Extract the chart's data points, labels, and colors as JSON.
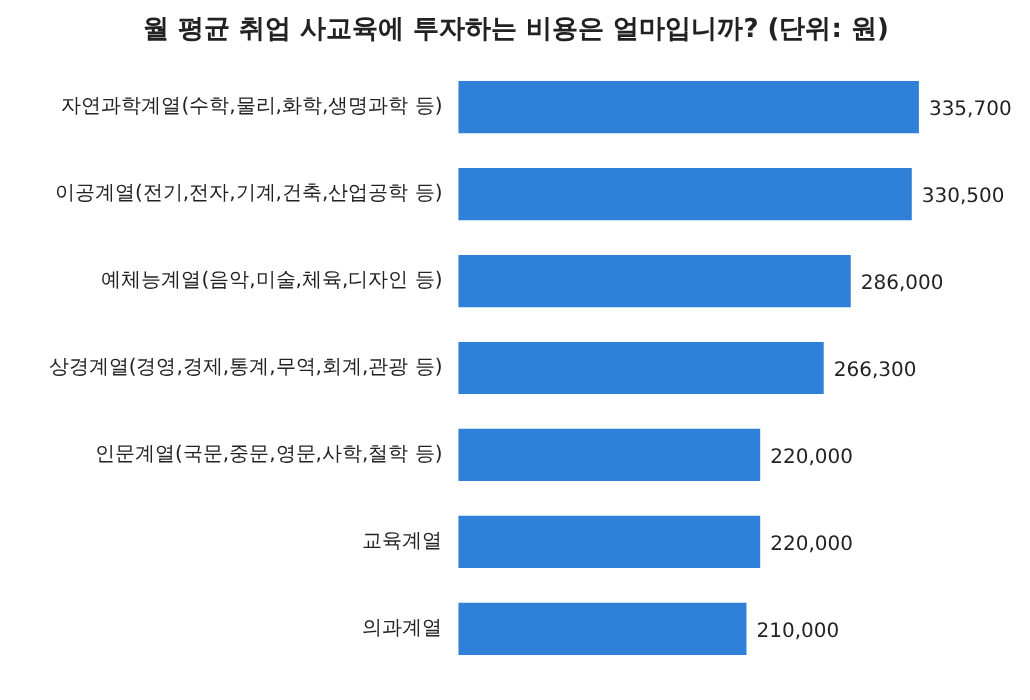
{
  "chart_data": {
    "type": "bar",
    "orientation": "horizontal",
    "title": "월 평균 취업 사교육에 투자하는 비용은 얼마입니까? (단위: 원)",
    "categories": [
      "자연과학계열(수학,물리,화학,생명과학 등)",
      "이공계열(전기,전자,기계,건축,산업공학 등)",
      "예체능계열(음악,미술,체육,디자인 등)",
      "상경계열(경영,경제,통계,무역,회계,관광 등)",
      "인문계열(국문,중문,영문,사학,철학 등)",
      "교육계열",
      "의과계열"
    ],
    "values": [
      335700,
      330500,
      286000,
      266300,
      220000,
      220000,
      210000
    ],
    "value_labels": [
      "335,700",
      "330,500",
      "286,000",
      "266,300",
      "220,000",
      "220,000",
      "210,000"
    ],
    "color": "#2f80d8"
  }
}
